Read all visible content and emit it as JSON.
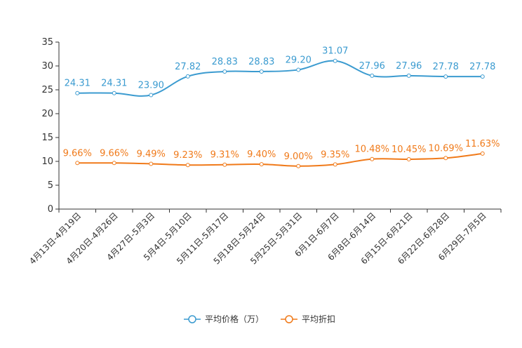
{
  "chart_data": {
    "type": "line",
    "categories": [
      "4月13日-4月19日",
      "4月20日-4月26日",
      "4月27日-5月3日",
      "5月4日-5月10日",
      "5月11日-5月17日",
      "5月18日-5月24日",
      "5月25日-5月31日",
      "6月1日-6月7日",
      "6月8日-6月14日",
      "6月15日-6月21日",
      "6月22日-6月28日",
      "6月29日-7月5日"
    ],
    "ylim": [
      0,
      35
    ],
    "yticks": [
      0,
      5,
      10,
      15,
      20,
      25,
      30,
      35
    ],
    "series": [
      {
        "name": "平均价格（万）",
        "color": "#3b9bd0",
        "values": [
          24.31,
          24.31,
          23.9,
          27.82,
          28.83,
          28.83,
          29.2,
          31.07,
          27.96,
          27.96,
          27.78,
          27.78
        ],
        "labels": [
          "24.31",
          "24.31",
          "23.90",
          "27.82",
          "28.83",
          "28.83",
          "29.20",
          "31.07",
          "27.96",
          "27.96",
          "27.78",
          "27.78"
        ]
      },
      {
        "name": "平均折扣",
        "color": "#f07a1a",
        "values": [
          9.66,
          9.66,
          9.49,
          9.23,
          9.31,
          9.4,
          9.0,
          9.35,
          10.48,
          10.45,
          10.69,
          11.63
        ],
        "labels": [
          "9.66%",
          "9.66%",
          "9.49%",
          "9.23%",
          "9.31%",
          "9.40%",
          "9.00%",
          "9.35%",
          "10.48%",
          "10.45%",
          "10.69%",
          "11.63%"
        ]
      }
    ],
    "legend_position": "bottom-center"
  }
}
